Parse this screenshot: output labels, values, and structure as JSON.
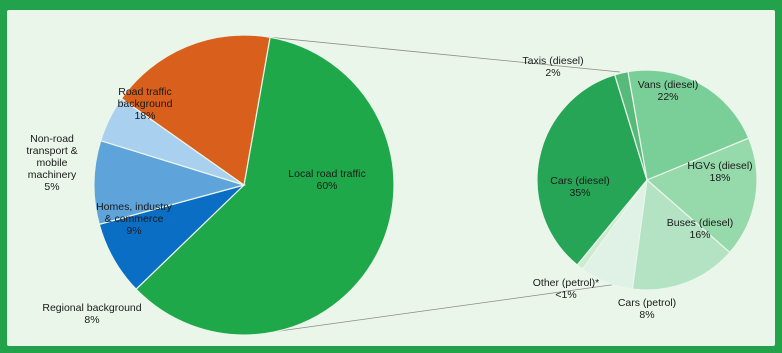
{
  "chart_data": [
    {
      "type": "pie",
      "slices": [
        {
          "label": [
            "Local road traffic"
          ],
          "value_text": "60%",
          "value": 60,
          "color": "#1fa84a"
        },
        {
          "label": [
            "Regional background"
          ],
          "value_text": "8%",
          "value": 8,
          "color": "#0a6fc4"
        },
        {
          "label": [
            "Homes, industry",
            "& commerce"
          ],
          "value_text": "9%",
          "value": 9,
          "color": "#5ea3da"
        },
        {
          "label": [
            "Non-road",
            "transport &",
            "mobile",
            "machinery"
          ],
          "value_text": "5%",
          "value": 5,
          "color": "#a9d0ef"
        },
        {
          "label": [
            "Road traffic",
            "background"
          ],
          "value_text": "18%",
          "value": 18,
          "color": "#d9601c"
        }
      ]
    },
    {
      "type": "pie",
      "slices": [
        {
          "label": [
            "Vans (diesel)"
          ],
          "value_text": "22%",
          "value": 22,
          "color": "#79cf97"
        },
        {
          "label": [
            "HGVs (diesel)"
          ],
          "value_text": "18%",
          "value": 18,
          "color": "#96d9ab"
        },
        {
          "label": [
            "Buses (diesel)"
          ],
          "value_text": "16%",
          "value": 16,
          "color": "#b3e3c2"
        },
        {
          "label": [
            "Cars (petrol)"
          ],
          "value_text": "8%",
          "value": 8,
          "color": "#dff2e5"
        },
        {
          "label": [
            "Other (petrol)*"
          ],
          "value_text": "<1%",
          "value": 1,
          "color": "#cdeccf"
        },
        {
          "label": [
            "Cars (diesel)"
          ],
          "value_text": "35%",
          "value": 35,
          "color": "#27a557"
        },
        {
          "label": [
            "Taxis (diesel)"
          ],
          "value_text": "2%",
          "value": 2,
          "color": "#57b97a"
        }
      ]
    }
  ]
}
